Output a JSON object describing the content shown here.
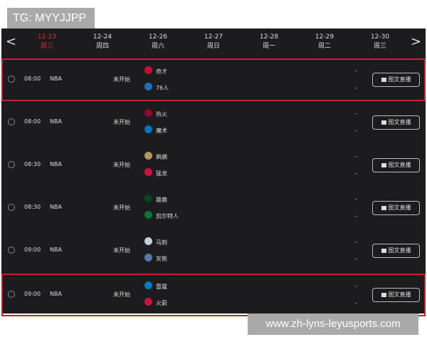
{
  "watermark_top": "TG: MYYJJPP",
  "watermark_bottom": "www.zh-lyns-leyusports.com",
  "accent": "#d8283a",
  "nav": {
    "prev": "<",
    "next": ">"
  },
  "days": [
    {
      "date": "12-23",
      "weekday": "周三",
      "active": true
    },
    {
      "date": "12-24",
      "weekday": "周四"
    },
    {
      "date": "12-26",
      "weekday": "周六"
    },
    {
      "date": "12-27",
      "weekday": "周日"
    },
    {
      "date": "12-28",
      "weekday": "周一"
    },
    {
      "date": "12-29",
      "weekday": "周二"
    },
    {
      "date": "12-30",
      "weekday": "周三"
    }
  ],
  "games": [
    {
      "time": "08:00",
      "league": "NBA",
      "status": "未开始",
      "home": "奇才",
      "away": "76人",
      "home_color": "#c8102e",
      "away_color": "#1d6fc0",
      "score_home": "-",
      "score_away": "-",
      "button": "图文直播",
      "highlighted": true
    },
    {
      "time": "08:00",
      "league": "NBA",
      "status": "未开始",
      "home": "热火",
      "away": "魔术",
      "home_color": "#98002e",
      "away_color": "#0077c0",
      "score_home": "-",
      "score_away": "-",
      "button": "图文直播",
      "highlighted": false
    },
    {
      "time": "08:30",
      "league": "NBA",
      "status": "未开始",
      "home": "鹈鹕",
      "away": "猛龙",
      "home_color": "#b4975a",
      "away_color": "#ce1141",
      "score_home": "-",
      "score_away": "-",
      "button": "图文直播",
      "highlighted": false
    },
    {
      "time": "08:30",
      "league": "NBA",
      "status": "未开始",
      "home": "雄鹿",
      "away": "凯尔特人",
      "home_color": "#00471b",
      "away_color": "#007a33",
      "score_home": "-",
      "score_away": "-",
      "button": "图文直播",
      "highlighted": false
    },
    {
      "time": "09:00",
      "league": "NBA",
      "status": "未开始",
      "home": "马刺",
      "away": "灰熊",
      "home_color": "#c4ced4",
      "away_color": "#5d76a9",
      "score_home": "-",
      "score_away": "-",
      "button": "图文直播",
      "highlighted": false
    },
    {
      "time": "09:00",
      "league": "NBA",
      "status": "未开始",
      "home": "雷霆",
      "away": "火箭",
      "home_color": "#007ac1",
      "away_color": "#ce1141",
      "score_home": "-",
      "score_away": "-",
      "button": "图文直播",
      "highlighted": true
    }
  ]
}
